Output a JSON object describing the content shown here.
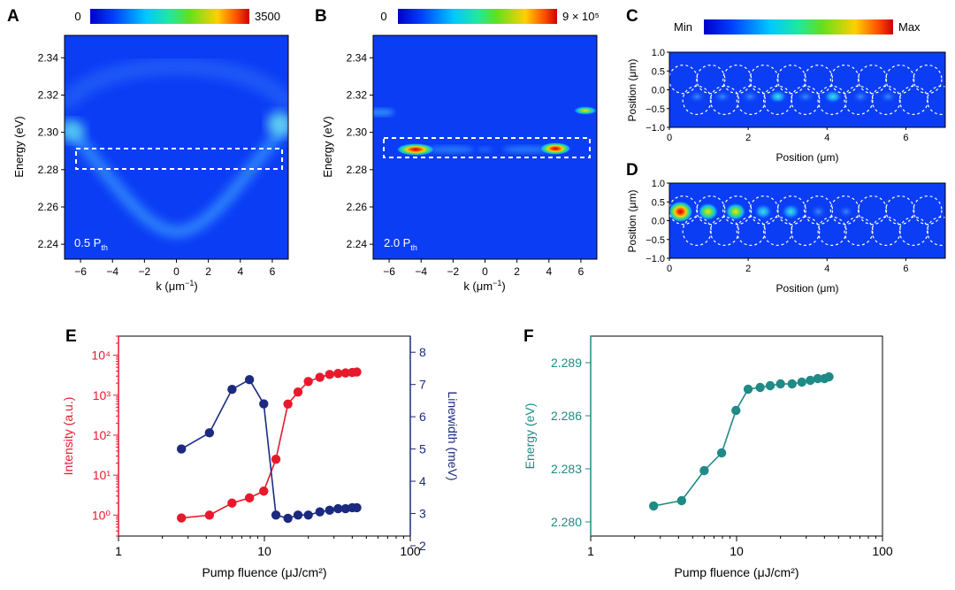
{
  "panels": {
    "A": {
      "letter": "A",
      "cbar_min": "0",
      "cbar_max": "3500",
      "pump_label": "0.5 P",
      "pump_sub": "th"
    },
    "B": {
      "letter": "B",
      "cbar_min": "0",
      "cbar_max": "9 × 10⁵",
      "pump_label": "2.0 P",
      "pump_sub": "th"
    },
    "C": {
      "letter": "C",
      "cbar_min": "Min",
      "cbar_max": "Max"
    },
    "D": {
      "letter": "D"
    },
    "E": {
      "letter": "E"
    },
    "F": {
      "letter": "F"
    }
  },
  "dispersion_axes": {
    "ylabel": "Energy (eV)",
    "xlabel_prefix": "k (μm",
    "xlabel_sup": "−1",
    "xlabel_suffix": ")",
    "yticks": [
      "2.34",
      "2.32",
      "2.30",
      "2.28",
      "2.26",
      "2.24"
    ],
    "xticks": [
      "−6",
      "−4",
      "−2",
      "0",
      "2",
      "4",
      "6"
    ]
  },
  "realspace_axes": {
    "ylabel": "Position (μm)",
    "xlabel": "Position (μm)",
    "yticks": [
      "1.0",
      "0.5",
      "0.0",
      "−0.5",
      "−1.0"
    ],
    "xticks": [
      "0",
      "2",
      "4",
      "6"
    ]
  },
  "colors": {
    "intensity": "#e8192c",
    "linewidth": "#1b2a80",
    "energy": "#1f8a86",
    "map_bg": "#0b3df5",
    "dashed": "#ffffff"
  },
  "chart_data": [
    {
      "panel": "E",
      "type": "line",
      "xlabel": "Pump fluence (μJ/cm²)",
      "xscale": "log",
      "xlim": [
        1,
        100
      ],
      "xticks": [
        "1",
        "10",
        "100"
      ],
      "x": [
        2.7,
        4.2,
        6.0,
        7.9,
        9.9,
        12.0,
        14.5,
        17.0,
        20.0,
        24.0,
        28.0,
        32.0,
        36.0,
        40.0,
        43.0
      ],
      "series": [
        {
          "name": "Intensity (a.u.)",
          "axis": "left",
          "yscale": "log",
          "ylim": [
            0.3,
            30000
          ],
          "yticks": [
            "10⁰",
            "10¹",
            "10²",
            "10³",
            "10⁴"
          ],
          "values": [
            0.85,
            1.0,
            2.0,
            2.7,
            4.0,
            25,
            600,
            1200,
            2200,
            2800,
            3300,
            3500,
            3600,
            3700,
            3800
          ]
        },
        {
          "name": "Linewidth (meV)",
          "axis": "right",
          "ylim": [
            2.3,
            8.5
          ],
          "yticks": [
            "2",
            "3",
            "4",
            "5",
            "6",
            "7",
            "8"
          ],
          "values": [
            5.0,
            5.5,
            6.85,
            7.15,
            6.4,
            2.95,
            2.85,
            2.95,
            2.95,
            3.05,
            3.1,
            3.15,
            3.15,
            3.18,
            3.18
          ]
        }
      ]
    },
    {
      "panel": "F",
      "type": "line",
      "xlabel": "Pump fluence (μJ/cm²)",
      "ylabel": "Energy (eV)",
      "xscale": "log",
      "xlim": [
        1,
        100
      ],
      "xticks": [
        "1",
        "10",
        "100"
      ],
      "ylim": [
        2.2792,
        2.2905
      ],
      "yticks": [
        "2.289",
        "2.286",
        "2.283",
        "2.280"
      ],
      "x": [
        2.7,
        4.2,
        6.0,
        7.9,
        9.9,
        12.0,
        14.5,
        17.0,
        20.0,
        24.0,
        28.0,
        32.0,
        36.0,
        40.0,
        43.0
      ],
      "values": [
        2.2809,
        2.2812,
        2.2829,
        2.2839,
        2.2863,
        2.2875,
        2.2876,
        2.2877,
        2.2878,
        2.2878,
        2.2879,
        2.288,
        2.2881,
        2.2881,
        2.2882
      ]
    }
  ]
}
